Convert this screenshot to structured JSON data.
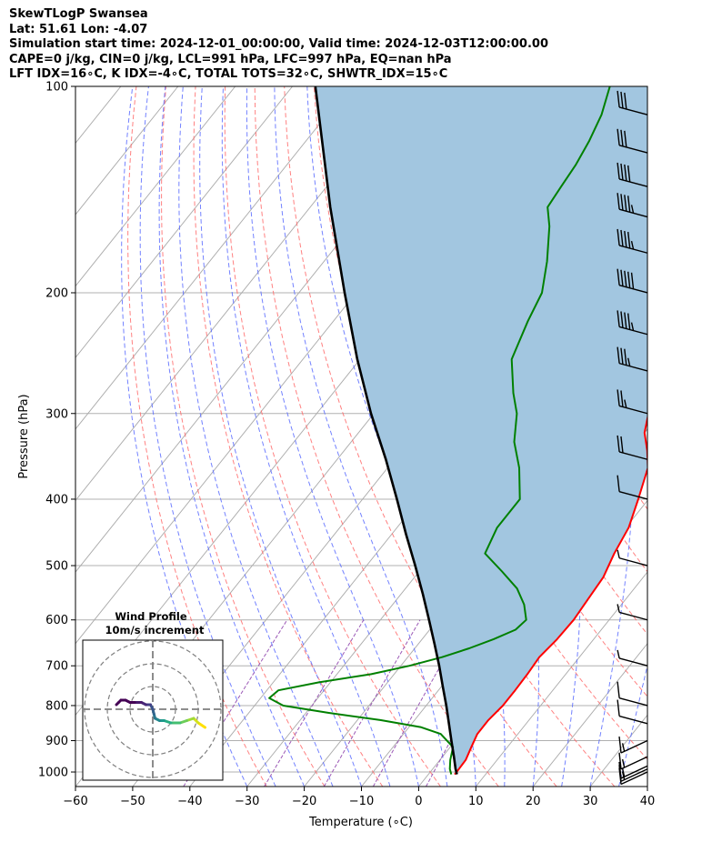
{
  "header": {
    "title": "SkewTLogP Swansea",
    "location": "Lat: 51.61   Lon: -4.07",
    "times": "Simulation start time: 2024-12-01_00:00:00, Valid time: 2024-12-03T12:00:00.00",
    "indices1": "CAPE=0 j/kg, CIN=0 j/kg, LCL=991 hPa, LFC=997 hPa, EQ=nan hPa",
    "indices2": "LFT IDX=16∘C, K IDX=-4∘C, TOTAL TOTS=32∘C, SHWTR_IDX=15∘C"
  },
  "colors": {
    "temperature": "#ff0000",
    "dewpoint": "#008000",
    "parcel": "#000000",
    "shading": "#a2c6e0",
    "dry_adiabat": "#ff6b6b",
    "moist_adiabat": "#5a6cff",
    "isotherm": "#aaaaaa",
    "mixing_ratio": "#9b59b6"
  },
  "chart_data": {
    "type": "line",
    "subtype": "skew-t log-p",
    "xlabel": "Temperature ($^\\circ$C)",
    "ylabel": "Pressure (hPa)",
    "xlim": [
      -60,
      40
    ],
    "ylim": [
      1050,
      100
    ],
    "y_scale": "log",
    "x_ticks": [
      -60,
      -50,
      -40,
      -30,
      -20,
      -10,
      0,
      10,
      20,
      30,
      40
    ],
    "x_tick_labels": [
      "−60",
      "−50",
      "−40",
      "−30",
      "−20",
      "−10",
      "0",
      "10",
      "20",
      "30",
      "40"
    ],
    "y_ticks": [
      1000,
      900,
      800,
      700,
      600,
      500,
      400,
      300,
      200,
      100
    ],
    "y_tick_labels": [
      "1000",
      "900",
      "800",
      "700",
      "600",
      "500",
      "400",
      "300",
      "200",
      "100"
    ],
    "grid": true,
    "series": [
      {
        "key": "temperature",
        "p": [
          1008,
          990,
          960,
          920,
          880,
          840,
          800,
          760,
          720,
          680,
          640,
          600,
          560,
          520,
          480,
          440,
          400,
          360,
          340,
          320,
          300,
          280,
          260,
          240,
          230,
          220,
          210,
          200,
          190,
          180,
          170,
          160,
          150,
          140,
          130,
          120,
          110,
          105,
          100
        ],
        "t": [
          4.6,
          4.6,
          4.5,
          3.7,
          2.9,
          2.9,
          3.4,
          3.4,
          3.3,
          3.0,
          3.6,
          3.8,
          3.4,
          3.0,
          1.6,
          0.5,
          -1.8,
          -4.5,
          -7.0,
          -10.0,
          -12.0,
          -13.5,
          -16.0,
          -19.0,
          -19.8,
          -20.5,
          -20.5,
          -22.5,
          -24.0,
          -25.0,
          -23.0,
          -23.0,
          -23.0,
          -22.0,
          -22.0,
          -22.0,
          -23.0,
          -23.0,
          -23.5
        ]
      },
      {
        "key": "dewpoint",
        "p": [
          1008,
          990,
          960,
          920,
          880,
          860,
          840,
          820,
          800,
          780,
          760,
          740,
          720,
          700,
          680,
          660,
          640,
          620,
          600,
          570,
          540,
          510,
          480,
          440,
          400,
          360,
          330,
          300,
          280,
          250,
          220,
          200,
          180,
          160,
          150,
          140,
          130,
          120,
          110,
          100
        ],
        "t": [
          4.0,
          3.0,
          1.8,
          0.5,
          -3.5,
          -8.0,
          -16.0,
          -26.0,
          -35.0,
          -38.5,
          -38.0,
          -32.0,
          -24.0,
          -18.5,
          -14.0,
          -10.5,
          -7.5,
          -5.0,
          -4.5,
          -7.0,
          -10.5,
          -15.5,
          -21.0,
          -22.5,
          -22.5,
          -27.0,
          -31.5,
          -35.0,
          -38.5,
          -43.5,
          -46.0,
          -47.5,
          -51.0,
          -55.5,
          -58.5,
          -59.0,
          -59.5,
          -60.5,
          -62.0,
          -64.5
        ]
      },
      {
        "key": "parcel",
        "p": [
          1008,
          990,
          950,
          900,
          850,
          800,
          750,
          700,
          650,
          600,
          550,
          500,
          450,
          400,
          350,
          300,
          250,
          200,
          150,
          100
        ],
        "t": [
          5.0,
          4.0,
          2.0,
          -0.7,
          -3.5,
          -6.5,
          -9.8,
          -13.3,
          -17.2,
          -21.5,
          -26.2,
          -31.5,
          -37.5,
          -44.0,
          -51.5,
          -60.5,
          -70.5,
          -82.0,
          -96.5,
          -116.0
        ]
      }
    ],
    "wind_barbs": {
      "p": [
        1000,
        990,
        980,
        950,
        900,
        850,
        800,
        700,
        600,
        500,
        400,
        350,
        300,
        260,
        230,
        200,
        175,
        155,
        140,
        125,
        110
      ],
      "speed_kt": [
        10,
        15,
        15,
        15,
        15,
        10,
        10,
        5,
        5,
        5,
        10,
        20,
        25,
        35,
        45,
        50,
        45,
        45,
        40,
        30,
        30
      ]
    },
    "hodograph": {
      "title": "Wind Profile",
      "subtitle": "10m/s increment",
      "rings_m_s": [
        10,
        20,
        30
      ],
      "u": [
        23,
        20,
        18,
        15,
        12,
        8,
        5,
        3,
        1,
        0.5,
        0,
        -1,
        -3,
        -5,
        -8,
        -10,
        -12,
        -14,
        -15,
        -16
      ],
      "v": [
        -8,
        -6,
        -4,
        -5,
        -6,
        -6,
        -5,
        -5,
        -4,
        -2,
        0,
        2,
        2,
        3,
        3,
        3,
        4,
        4,
        3,
        2
      ]
    }
  }
}
